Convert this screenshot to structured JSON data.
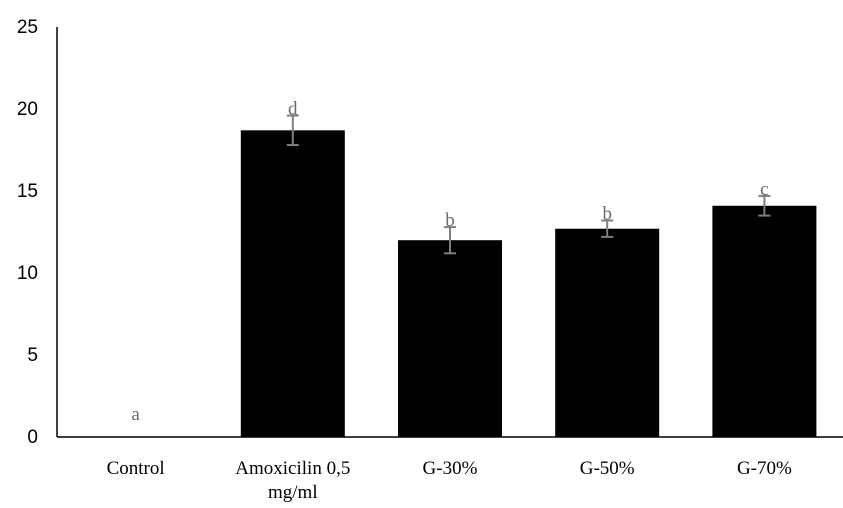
{
  "chart_data": {
    "type": "bar",
    "title": "",
    "xlabel": "",
    "ylabel": "",
    "ylim": [
      0,
      25
    ],
    "yticks": [
      0,
      5,
      10,
      15,
      20,
      25
    ],
    "grid": false,
    "legend": "none",
    "bar_color": "#000000",
    "error_bar_color": "#7f7f7f",
    "categories": [
      {
        "label": [
          "Control"
        ],
        "value": 0,
        "error": 0,
        "significance": "a"
      },
      {
        "label": [
          "Amoxicilin 0,5",
          "mg/ml"
        ],
        "value": 18.7,
        "error": 0.9,
        "significance": "d"
      },
      {
        "label": [
          "G-30%"
        ],
        "value": 12.0,
        "error": 0.8,
        "significance": "b"
      },
      {
        "label": [
          "G-50%"
        ],
        "value": 12.7,
        "error": 0.5,
        "significance": "b"
      },
      {
        "label": [
          "G-70%"
        ],
        "value": 14.1,
        "error": 0.6,
        "significance": "c"
      }
    ]
  }
}
